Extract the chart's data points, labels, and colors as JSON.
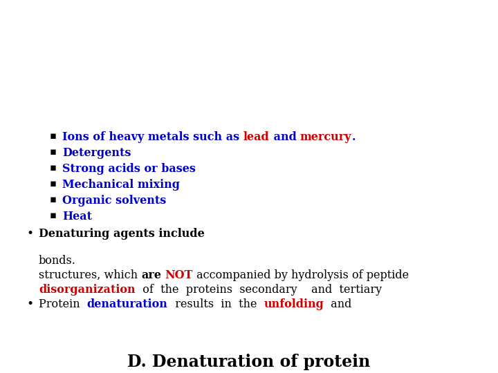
{
  "title": "D. Denaturation of protein",
  "background_color": "#ffffff",
  "title_color": "#000000",
  "title_fontsize": 17,
  "body_fontsize": 11.5,
  "blue": "#0000CC",
  "red": "#CC0000",
  "black": "#000000",
  "bullet1_line1": [
    [
      "Protein  ",
      "#000000",
      false
    ],
    [
      "denaturation",
      "#0000CC",
      true
    ],
    [
      "  results  in  the  ",
      "#000000",
      false
    ],
    [
      "unfolding",
      "#CC0000",
      true
    ],
    [
      "  and",
      "#000000",
      false
    ]
  ],
  "bullet1_line2": [
    [
      "disorganization",
      "#CC0000",
      true
    ],
    [
      "  of  the  proteins  secondary    and  tertiary",
      "#000000",
      false
    ]
  ],
  "bullet1_line3": [
    [
      "structures, which ",
      "#000000",
      false
    ],
    [
      "are",
      "#000000",
      true
    ],
    [
      " ",
      "#000000",
      false
    ],
    [
      "NOT",
      "#CC0000",
      true
    ],
    [
      " accompanied by hydrolysis of peptide",
      "#000000",
      false
    ]
  ],
  "bullet1_line4": [
    [
      "bonds.",
      "#000000",
      false
    ]
  ],
  "bullet2_text": "Denaturing agents include",
  "sub_items": [
    [
      [
        "Heat",
        "#0000CC",
        true
      ]
    ],
    [
      [
        "Organic solvents",
        "#0000CC",
        true
      ]
    ],
    [
      [
        "Mechanical mixing",
        "#0000CC",
        true
      ]
    ],
    [
      [
        "Strong acids or bases",
        "#0000CC",
        true
      ]
    ],
    [
      [
        "Detergents",
        "#0000CC",
        true
      ]
    ],
    [
      [
        "Ions of heavy metals such as ",
        "#0000CC",
        true
      ],
      [
        "lead",
        "#CC0000",
        true
      ],
      [
        " and ",
        "#0000CC",
        true
      ],
      [
        "mercury",
        "#CC0000",
        true
      ],
      [
        ".",
        "#0000CC",
        true
      ]
    ]
  ]
}
